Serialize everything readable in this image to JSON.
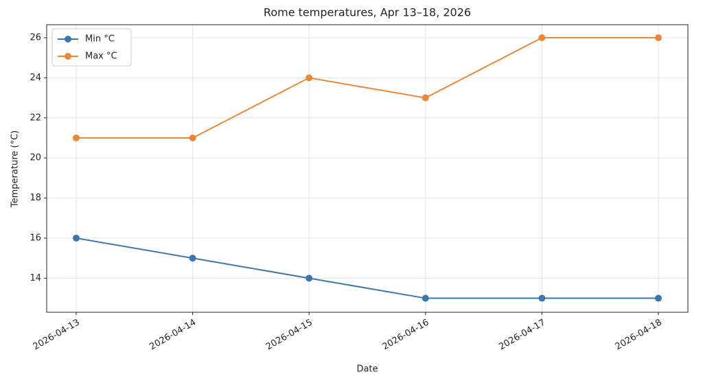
{
  "chart_data": {
    "type": "line",
    "title": "Rome temperatures, Apr 13–18, 2026",
    "x_label": "Date",
    "y_label": "Temperature (°C)",
    "categories": [
      "2026-04-13",
      "2026-04-14",
      "2026-04-15",
      "2026-04-16",
      "2026-04-17",
      "2026-04-18"
    ],
    "series": [
      {
        "name": "Min °C",
        "color": "#3a76af",
        "values": [
          16,
          15,
          14,
          13,
          13,
          13
        ]
      },
      {
        "name": "Max °C",
        "color": "#ef8636",
        "values": [
          21,
          21,
          24,
          23,
          26,
          26
        ]
      }
    ],
    "ylim": [
      12.3,
      26.65
    ],
    "yticks": [
      14,
      16,
      18,
      20,
      22,
      24,
      26
    ],
    "grid": true,
    "legend": "upper-left"
  }
}
